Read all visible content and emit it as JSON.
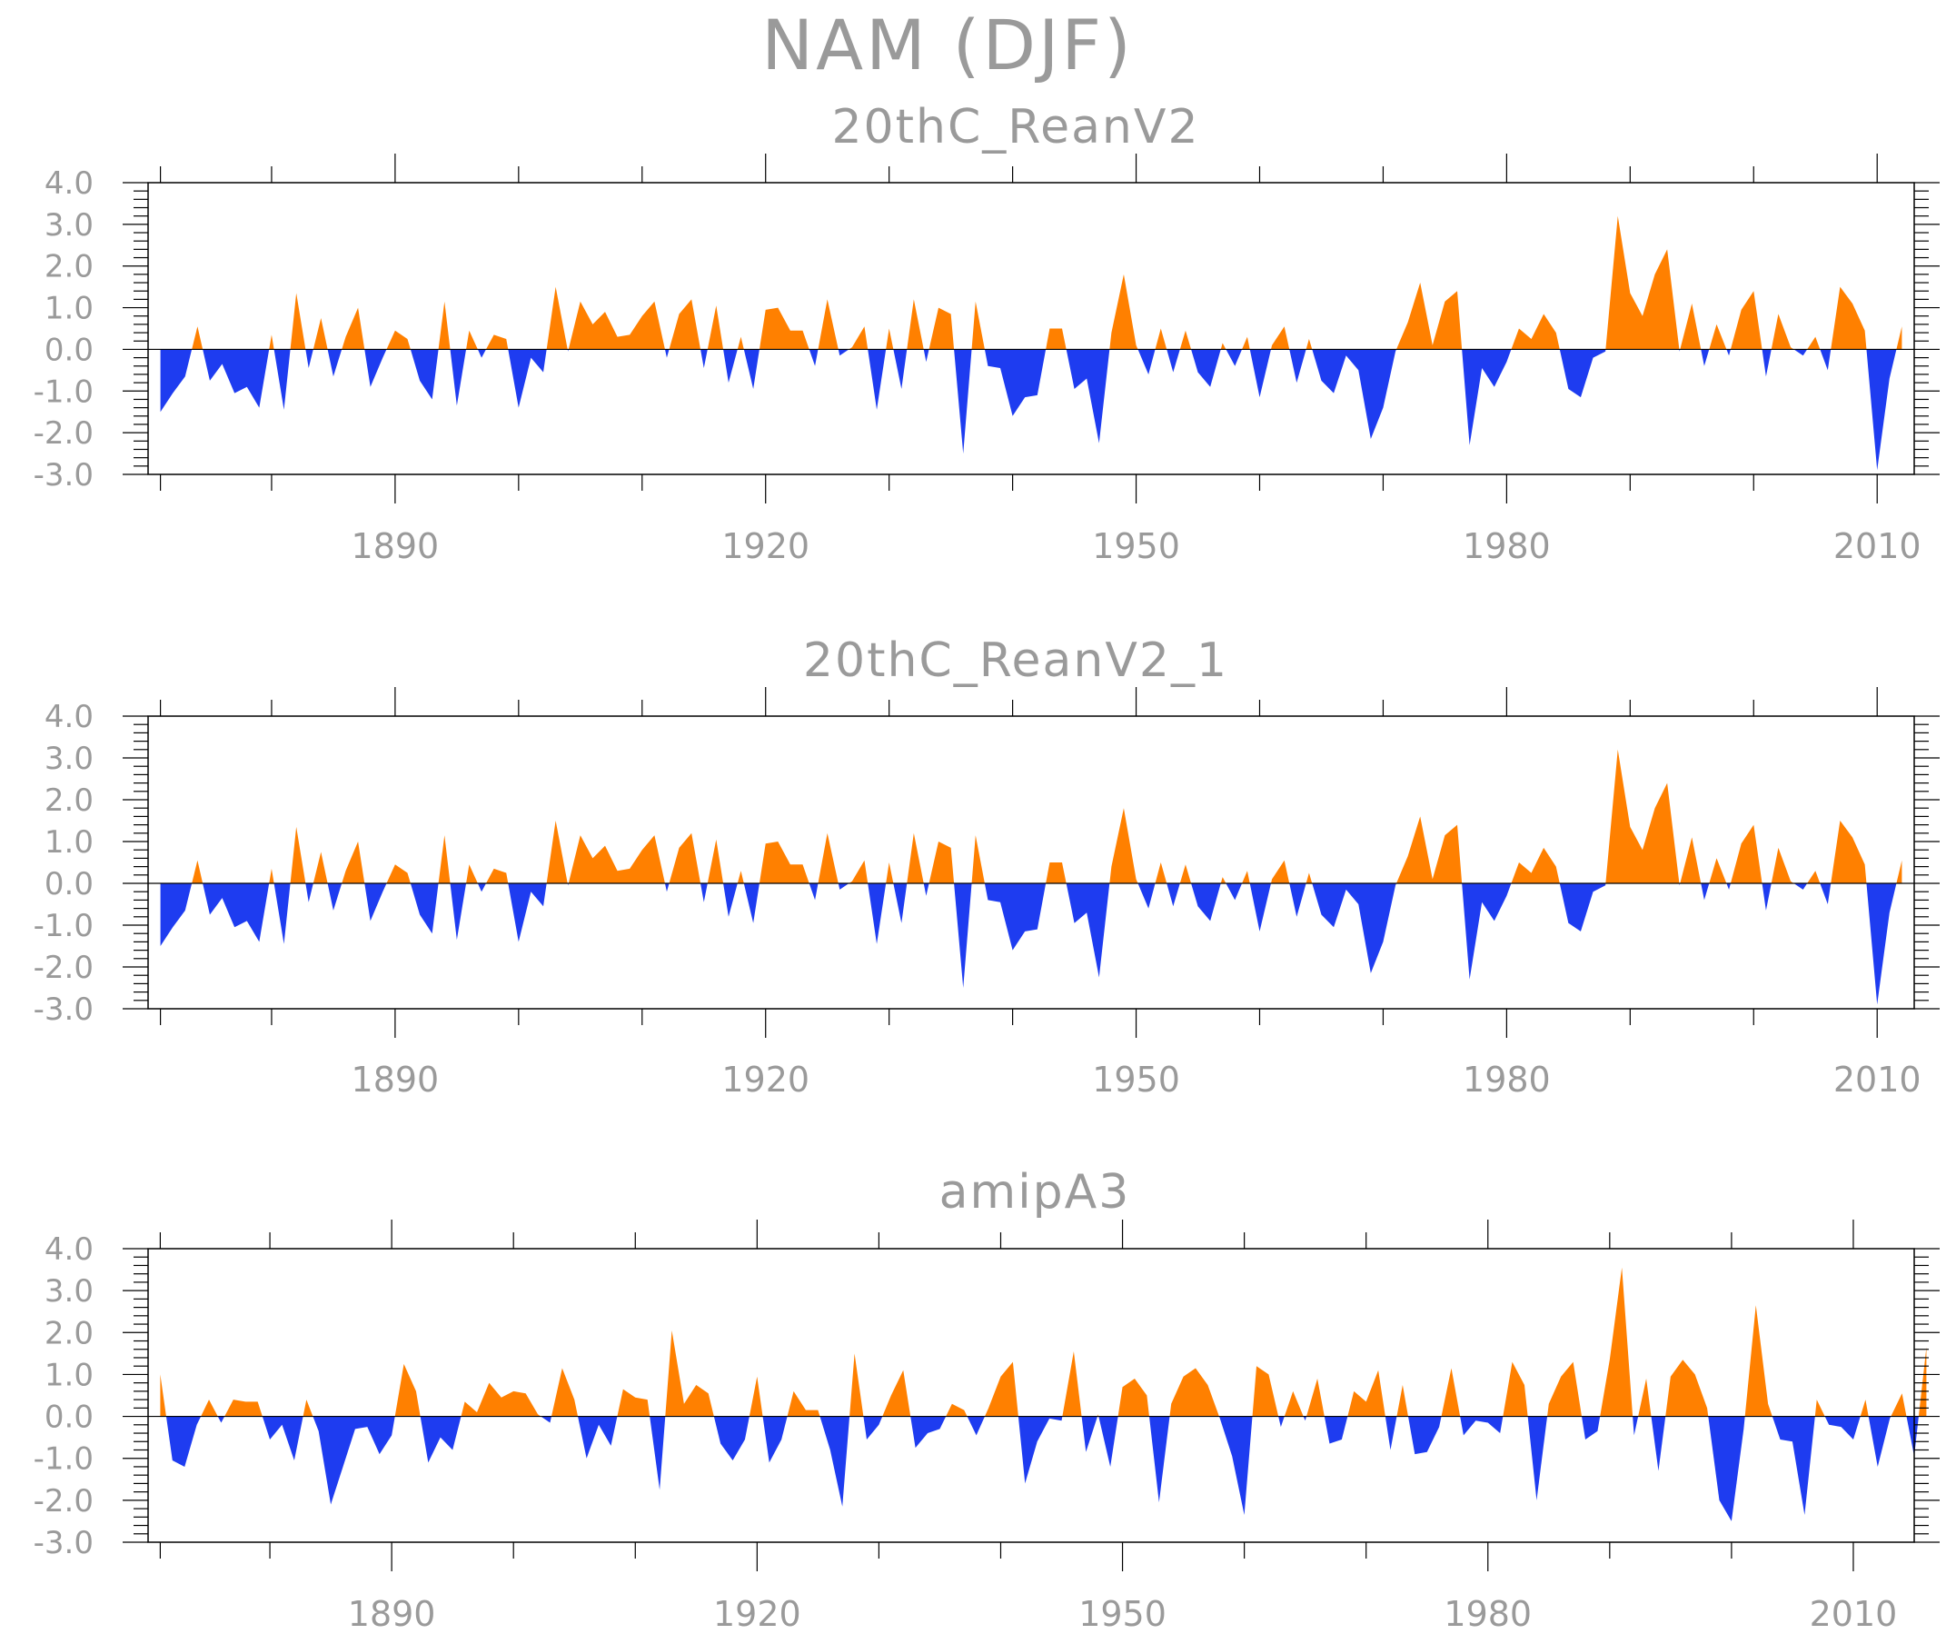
{
  "title": "NAM (DJF)",
  "colors": {
    "positive": "#ff8000",
    "negative": "#1e3cf0",
    "text": "#9a9a9a",
    "axis": "#000000"
  },
  "chart_data": [
    {
      "type": "area",
      "title": "20thC_ReanV2",
      "x_start": 1871,
      "xlim": [
        1870,
        2013
      ],
      "ylim": [
        -3.0,
        4.0
      ],
      "x_ticks": [
        1890,
        1920,
        1950,
        1980,
        2010
      ],
      "x_tick_labels": [
        "1890",
        "1920",
        "1950",
        "1980",
        "2010"
      ],
      "y_ticks": [
        4.0,
        3.0,
        2.0,
        1.0,
        0.0,
        -1.0,
        -2.0,
        -3.0
      ],
      "y_tick_labels": [
        "4.0",
        "3.0",
        "2.0",
        "1.0",
        "0.0",
        "-1.0",
        "-2.0",
        "-3.0"
      ],
      "fill_above_zero": "positive",
      "fill_below_zero": "negative",
      "values": [
        -1.5,
        -1.05,
        -0.65,
        0.55,
        -0.75,
        -0.35,
        -1.05,
        -0.9,
        -1.4,
        0.35,
        -1.45,
        1.35,
        -0.45,
        0.75,
        -0.65,
        0.3,
        1.0,
        -0.9,
        -0.2,
        0.45,
        0.25,
        -0.75,
        -1.2,
        1.15,
        -1.35,
        0.45,
        -0.2,
        0.35,
        0.25,
        -1.4,
        -0.2,
        -0.55,
        1.5,
        -0.05,
        1.15,
        0.6,
        0.9,
        0.3,
        0.35,
        0.8,
        1.15,
        -0.2,
        0.85,
        1.2,
        -0.45,
        1.05,
        -0.8,
        0.3,
        -0.95,
        0.95,
        1.0,
        0.45,
        0.45,
        -0.4,
        1.2,
        -0.15,
        0.05,
        0.55,
        -1.45,
        0.5,
        -0.95,
        1.2,
        -0.3,
        1.0,
        0.85,
        -2.5,
        1.15,
        -0.4,
        -0.45,
        -1.6,
        -1.15,
        -1.1,
        0.5,
        0.5,
        -0.95,
        -0.7,
        -2.25,
        0.4,
        1.8,
        0.1,
        -0.6,
        0.5,
        -0.55,
        0.45,
        -0.55,
        -0.9,
        0.15,
        -0.4,
        0.3,
        -1.15,
        0.1,
        0.55,
        -0.8,
        0.25,
        -0.75,
        -1.05,
        -0.15,
        -0.5,
        -2.15,
        -1.4,
        -0.05,
        0.65,
        1.6,
        0.1,
        1.15,
        1.4,
        -2.3,
        -0.45,
        -0.9,
        -0.3,
        0.5,
        0.25,
        0.85,
        0.4,
        -0.95,
        -1.15,
        -0.2,
        -0.05,
        3.2,
        1.35,
        0.8,
        1.8,
        2.4,
        -0.05,
        1.1,
        -0.4,
        0.6,
        -0.15,
        0.95,
        1.4,
        -0.65,
        0.85,
        0.05,
        -0.15,
        0.3,
        -0.5,
        1.5,
        1.1,
        0.45,
        -2.9,
        -0.7,
        0.55
      ]
    },
    {
      "type": "area",
      "title": "20thC_ReanV2_1",
      "x_start": 1871,
      "xlim": [
        1870,
        2013
      ],
      "ylim": [
        -3.0,
        4.0
      ],
      "x_ticks": [
        1890,
        1920,
        1950,
        1980,
        2010
      ],
      "x_tick_labels": [
        "1890",
        "1920",
        "1950",
        "1980",
        "2010"
      ],
      "y_ticks": [
        4.0,
        3.0,
        2.0,
        1.0,
        0.0,
        -1.0,
        -2.0,
        -3.0
      ],
      "y_tick_labels": [
        "4.0",
        "3.0",
        "2.0",
        "1.0",
        "0.0",
        "-1.0",
        "-2.0",
        "-3.0"
      ],
      "fill_above_zero": "positive",
      "fill_below_zero": "negative",
      "values": [
        -1.5,
        -1.05,
        -0.65,
        0.55,
        -0.75,
        -0.35,
        -1.05,
        -0.9,
        -1.4,
        0.35,
        -1.45,
        1.35,
        -0.45,
        0.75,
        -0.65,
        0.3,
        1.0,
        -0.9,
        -0.2,
        0.45,
        0.25,
        -0.75,
        -1.2,
        1.15,
        -1.35,
        0.45,
        -0.2,
        0.35,
        0.25,
        -1.4,
        -0.2,
        -0.55,
        1.5,
        -0.05,
        1.15,
        0.6,
        0.9,
        0.3,
        0.35,
        0.8,
        1.15,
        -0.2,
        0.85,
        1.2,
        -0.45,
        1.05,
        -0.8,
        0.3,
        -0.95,
        0.95,
        1.0,
        0.45,
        0.45,
        -0.4,
        1.2,
        -0.15,
        0.05,
        0.55,
        -1.45,
        0.5,
        -0.95,
        1.2,
        -0.3,
        1.0,
        0.85,
        -2.5,
        1.15,
        -0.4,
        -0.45,
        -1.6,
        -1.15,
        -1.1,
        0.5,
        0.5,
        -0.95,
        -0.7,
        -2.25,
        0.4,
        1.8,
        0.1,
        -0.6,
        0.5,
        -0.55,
        0.45,
        -0.55,
        -0.9,
        0.15,
        -0.4,
        0.3,
        -1.15,
        0.1,
        0.55,
        -0.8,
        0.25,
        -0.75,
        -1.05,
        -0.15,
        -0.5,
        -2.15,
        -1.4,
        -0.05,
        0.65,
        1.6,
        0.1,
        1.15,
        1.4,
        -2.3,
        -0.45,
        -0.9,
        -0.3,
        0.5,
        0.25,
        0.85,
        0.4,
        -0.95,
        -1.15,
        -0.2,
        -0.05,
        3.2,
        1.35,
        0.8,
        1.8,
        2.4,
        -0.05,
        1.1,
        -0.4,
        0.6,
        -0.15,
        0.95,
        1.4,
        -0.65,
        0.85,
        0.05,
        -0.15,
        0.3,
        -0.5,
        1.5,
        1.1,
        0.45,
        -2.9,
        -0.7,
        0.55
      ]
    },
    {
      "type": "area",
      "title": "amipA3",
      "x_start": 1871,
      "xlim": [
        1870,
        2015
      ],
      "ylim": [
        -3.0,
        4.0
      ],
      "x_ticks": [
        1890,
        1920,
        1950,
        1980,
        2010
      ],
      "x_tick_labels": [
        "1890",
        "1920",
        "1950",
        "1980",
        "2010"
      ],
      "y_ticks": [
        4.0,
        3.0,
        2.0,
        1.0,
        0.0,
        -1.0,
        -2.0,
        -3.0
      ],
      "y_tick_labels": [
        "4.0",
        "3.0",
        "2.0",
        "1.0",
        "0.0",
        "-1.0",
        "-2.0",
        "-3.0"
      ],
      "fill_above_zero": "positive",
      "fill_below_zero": "negative",
      "values": [
        1.0,
        -1.05,
        -1.2,
        -0.2,
        0.4,
        -0.15,
        0.4,
        0.35,
        0.35,
        -0.55,
        -0.2,
        -1.05,
        0.4,
        -0.35,
        -2.1,
        -1.2,
        -0.3,
        -0.25,
        -0.9,
        -0.45,
        1.25,
        0.6,
        -1.1,
        -0.5,
        -0.8,
        0.35,
        0.1,
        0.8,
        0.45,
        0.6,
        0.55,
        0.05,
        -0.15,
        1.15,
        0.4,
        -1.0,
        -0.2,
        -0.7,
        0.65,
        0.45,
        0.4,
        -1.75,
        2.05,
        0.3,
        0.75,
        0.55,
        -0.65,
        -1.05,
        -0.55,
        0.95,
        -1.1,
        -0.55,
        0.6,
        0.15,
        0.15,
        -0.8,
        -2.15,
        1.5,
        -0.55,
        -0.2,
        0.5,
        1.1,
        -0.75,
        -0.4,
        -0.3,
        0.3,
        0.15,
        -0.45,
        0.2,
        0.95,
        1.3,
        -1.6,
        -0.6,
        -0.05,
        -0.1,
        1.55,
        -0.85,
        0.05,
        -1.2,
        0.7,
        0.9,
        0.5,
        -2.05,
        0.3,
        0.95,
        1.15,
        0.75,
        -0.05,
        -0.95,
        -2.35,
        1.2,
        1.0,
        -0.25,
        0.6,
        -0.1,
        0.9,
        -0.65,
        -0.55,
        0.6,
        0.35,
        1.1,
        -0.8,
        0.75,
        -0.9,
        -0.85,
        -0.25,
        1.15,
        -0.45,
        -0.1,
        -0.15,
        -0.4,
        1.3,
        0.75,
        -2.0,
        0.3,
        0.95,
        1.3,
        -0.55,
        -0.35,
        1.35,
        3.55,
        -0.45,
        0.9,
        -1.3,
        0.95,
        1.35,
        1.0,
        0.2,
        -2.0,
        -2.5,
        -0.3,
        2.65,
        0.3,
        -0.55,
        -0.6,
        -2.35,
        0.4,
        -0.2,
        -0.25,
        -0.55,
        0.4,
        -1.2,
        -0.05,
        0.55,
        -0.95,
        1.65
      ]
    }
  ]
}
